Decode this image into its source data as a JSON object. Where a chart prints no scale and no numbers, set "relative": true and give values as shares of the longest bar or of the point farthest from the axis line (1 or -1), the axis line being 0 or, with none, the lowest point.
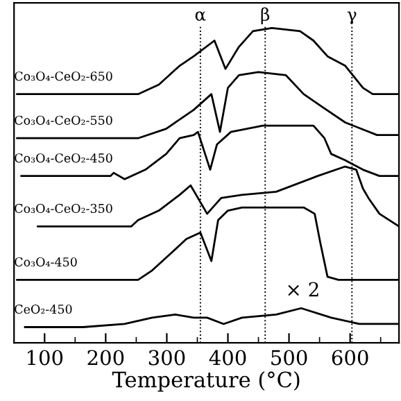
{
  "chart_data": {
    "type": "line",
    "relative": true,
    "xlabel": "Temperature (°C)",
    "xlim": [
      50,
      680
    ],
    "xticks": [
      100,
      {
        "value": 150,
        "label": null
      },
      200,
      {
        "value": 250,
        "label": null
      },
      300,
      {
        "value": 350,
        "label": null
      },
      400,
      {
        "value": 450,
        "label": null
      },
      500,
      {
        "value": 550,
        "label": null
      },
      600,
      {
        "value": 650,
        "label": null
      }
    ],
    "grid": false,
    "legend": false,
    "marker": "none",
    "line_style": "solid",
    "ref_lines": [
      {
        "axis": "x",
        "value": 355,
        "label": "α",
        "color": "#000000",
        "line_style": "dotted"
      },
      {
        "axis": "x",
        "value": 461,
        "label": "β",
        "color": "#000000",
        "line_style": "dotted"
      },
      {
        "axis": "x",
        "value": 603,
        "label": "γ",
        "color": "#000000",
        "line_style": "dotted"
      }
    ],
    "annotations": [
      "× 2"
    ],
    "series": [
      {
        "name": "Co₃O₄-CeO₂-650",
        "color": "#000000",
        "x": [
          55,
          253,
          287,
          321,
          344,
          378,
          396,
          418,
          441,
          472,
          518,
          540,
          563,
          592,
          621,
          637,
          680
        ],
        "values": [
          0.79,
          0.79,
          0.82,
          0.88,
          0.91,
          0.96,
          0.87,
          0.94,
          0.99,
          1.0,
          0.99,
          0.96,
          0.91,
          0.88,
          0.81,
          0.79,
          0.79
        ]
      },
      {
        "name": "Co₃O₄-CeO₂-550",
        "color": "#000000",
        "x": [
          55,
          253,
          299,
          344,
          373,
          387,
          400,
          418,
          450,
          495,
          524,
          554,
          592,
          644,
          680
        ],
        "values": [
          0.65,
          0.65,
          0.68,
          0.74,
          0.79,
          0.67,
          0.81,
          0.85,
          0.86,
          0.85,
          0.79,
          0.75,
          0.7,
          0.66,
          0.66
        ]
      },
      {
        "name": "Co₃O₄-CeO₂-450",
        "color": "#000000",
        "x": [
          62,
          208,
          213,
          231,
          265,
          299,
          321,
          344,
          351,
          371,
          382,
          405,
          457,
          540,
          558,
          569,
          592,
          621,
          648,
          680
        ],
        "values": [
          0.53,
          0.53,
          0.54,
          0.52,
          0.55,
          0.6,
          0.65,
          0.66,
          0.67,
          0.55,
          0.63,
          0.67,
          0.69,
          0.69,
          0.65,
          0.6,
          0.58,
          0.55,
          0.53,
          0.53
        ]
      },
      {
        "name": "Co₃O₄-CeO₂-350",
        "color": "#000000",
        "x": [
          89,
          242,
          253,
          287,
          321,
          339,
          366,
          389,
          423,
          479,
          547,
          592,
          610,
          621,
          630,
          648,
          680
        ],
        "values": [
          0.37,
          0.37,
          0.39,
          0.42,
          0.47,
          0.5,
          0.41,
          0.46,
          0.47,
          0.48,
          0.53,
          0.56,
          0.55,
          0.49,
          0.46,
          0.41,
          0.37
        ]
      },
      {
        "name": "Co₃O₄-450",
        "color": "#000000",
        "x": [
          55,
          253,
          276,
          310,
          332,
          355,
          373,
          384,
          400,
          423,
          457,
          524,
          542,
          551,
          563,
          581,
          680
        ],
        "values": [
          0.2,
          0.2,
          0.23,
          0.29,
          0.33,
          0.35,
          0.26,
          0.39,
          0.42,
          0.43,
          0.43,
          0.43,
          0.41,
          0.32,
          0.21,
          0.2,
          0.2
        ]
      },
      {
        "name": "CeO₂-450",
        "color": "#000000",
        "x": [
          68,
          163,
          231,
          276,
          314,
          344,
          366,
          393,
          423,
          479,
          520,
          569,
          615,
          680
        ],
        "values": [
          0.05,
          0.05,
          0.06,
          0.08,
          0.09,
          0.08,
          0.08,
          0.06,
          0.08,
          0.09,
          0.11,
          0.08,
          0.06,
          0.06
        ]
      }
    ]
  }
}
